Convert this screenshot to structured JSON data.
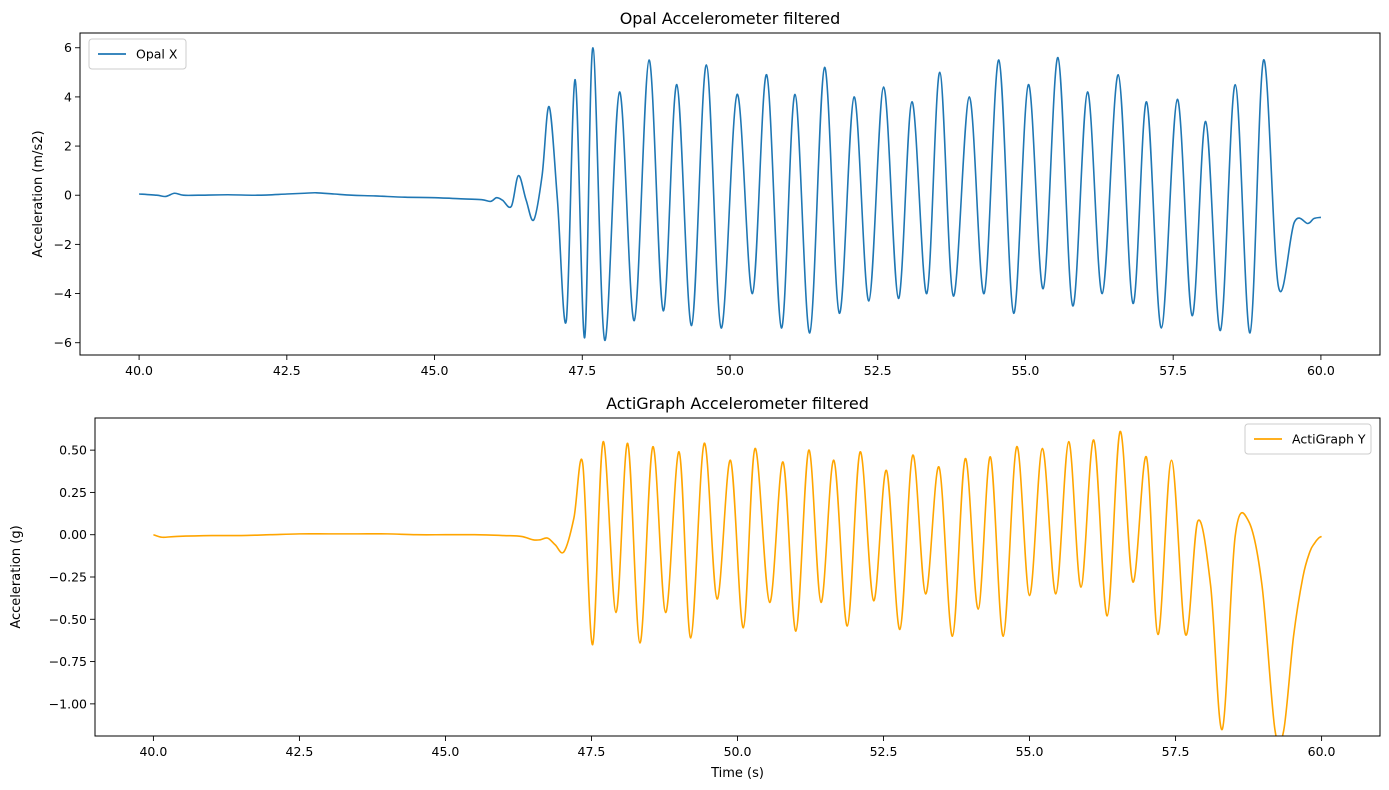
{
  "chart_data": [
    {
      "type": "line",
      "title": "Opal Accelerometer filtered",
      "xlabel": "",
      "ylabel": "Acceleration (m/s2)",
      "xlim": [
        39.0,
        61.0
      ],
      "ylim": [
        -6.5,
        6.6
      ],
      "xticks": [
        40.0,
        42.5,
        45.0,
        47.5,
        50.0,
        52.5,
        55.0,
        57.5,
        60.0
      ],
      "xtick_labels": [
        "40.0",
        "42.5",
        "45.0",
        "47.5",
        "50.0",
        "52.5",
        "55.0",
        "57.5",
        "60.0"
      ],
      "yticks": [
        -6,
        -4,
        -2,
        0,
        2,
        4,
        6
      ],
      "ytick_labels": [
        "−6",
        "−4",
        "−2",
        "0",
        "2",
        "4",
        "6"
      ],
      "legend_position": "upper-left",
      "grid": false,
      "series": [
        {
          "name": "Opal X",
          "color": "#1f77b4",
          "x": [
            40.0,
            40.3,
            40.45,
            40.6,
            40.75,
            41.0,
            41.5,
            42.0,
            42.5,
            42.8,
            43.0,
            43.3,
            43.6,
            44.0,
            44.5,
            45.0,
            45.5,
            45.8,
            45.95,
            46.05,
            46.15,
            46.3,
            46.42,
            46.55,
            46.68,
            46.82,
            46.94,
            47.08,
            47.23,
            47.38,
            47.54,
            47.68,
            47.88,
            48.13,
            48.38,
            48.63,
            48.87,
            49.1,
            49.35,
            49.6,
            49.85,
            50.12,
            50.38,
            50.62,
            50.87,
            51.1,
            51.35,
            51.6,
            51.85,
            52.1,
            52.35,
            52.6,
            52.85,
            53.08,
            53.33,
            53.55,
            53.78,
            54.05,
            54.3,
            54.55,
            54.8,
            55.05,
            55.3,
            55.55,
            55.8,
            56.05,
            56.3,
            56.57,
            56.82,
            57.05,
            57.3,
            57.57,
            57.82,
            58.05,
            58.3,
            58.55,
            58.8,
            59.03,
            59.28,
            59.55,
            59.78,
            59.88,
            60.0
          ],
          "y": [
            0.05,
            0.0,
            -0.05,
            0.08,
            0.0,
            0.0,
            0.02,
            0.0,
            0.05,
            0.08,
            0.1,
            0.05,
            0.0,
            -0.03,
            -0.08,
            -0.1,
            -0.15,
            -0.18,
            -0.25,
            -0.1,
            -0.2,
            -0.45,
            0.8,
            -0.2,
            -1.0,
            0.8,
            3.6,
            -0.2,
            -5.1,
            4.7,
            -5.8,
            6.0,
            -5.9,
            4.2,
            -5.1,
            5.5,
            -4.7,
            4.5,
            -5.3,
            5.3,
            -5.4,
            4.1,
            -4.0,
            4.9,
            -5.4,
            4.1,
            -5.6,
            5.2,
            -4.8,
            4.0,
            -4.3,
            4.4,
            -4.2,
            3.8,
            -4.0,
            5.0,
            -4.1,
            4.0,
            -4.0,
            5.5,
            -4.8,
            4.5,
            -3.8,
            5.6,
            -4.5,
            4.2,
            -4.0,
            4.9,
            -4.4,
            3.8,
            -5.4,
            3.9,
            -4.9,
            3.0,
            -5.5,
            4.5,
            -5.6,
            5.5,
            -3.7,
            -1.1,
            -1.15,
            -0.95,
            -0.9
          ]
        }
      ]
    },
    {
      "type": "line",
      "title": "ActiGraph Accelerometer filtered",
      "xlabel": "Time (s)",
      "ylabel": "Acceleration (g)",
      "xlim": [
        39.0,
        61.0
      ],
      "ylim": [
        -1.19,
        0.69
      ],
      "xticks": [
        40.0,
        42.5,
        45.0,
        47.5,
        50.0,
        52.5,
        55.0,
        57.5,
        60.0
      ],
      "xtick_labels": [
        "40.0",
        "42.5",
        "45.0",
        "47.5",
        "50.0",
        "52.5",
        "55.0",
        "57.5",
        "60.0"
      ],
      "yticks": [
        -1.0,
        -0.75,
        -0.5,
        -0.25,
        0.0,
        0.25,
        0.5
      ],
      "ytick_labels": [
        "−1.00",
        "−0.75",
        "−0.50",
        "−0.25",
        "0.00",
        "0.25",
        "0.50"
      ],
      "legend_position": "upper-right",
      "grid": false,
      "series": [
        {
          "name": "ActiGraph Y",
          "color": "#ffa500",
          "x": [
            40.0,
            40.15,
            40.4,
            41.0,
            41.5,
            42.0,
            42.5,
            43.0,
            43.5,
            44.0,
            44.5,
            45.0,
            45.5,
            46.0,
            46.3,
            46.5,
            46.62,
            46.75,
            46.88,
            47.03,
            47.2,
            47.35,
            47.52,
            47.7,
            47.92,
            48.12,
            48.33,
            48.55,
            48.77,
            49.0,
            49.2,
            49.43,
            49.65,
            49.88,
            50.1,
            50.3,
            50.55,
            50.78,
            51.0,
            51.22,
            51.43,
            51.65,
            51.88,
            52.1,
            52.33,
            52.55,
            52.78,
            53.0,
            53.22,
            53.45,
            53.68,
            53.9,
            54.12,
            54.33,
            54.55,
            54.78,
            55.0,
            55.22,
            55.45,
            55.67,
            55.88,
            56.1,
            56.33,
            56.55,
            56.77,
            57.0,
            57.2,
            57.43,
            57.67,
            57.88,
            58.1,
            58.3,
            58.52,
            58.75,
            58.98,
            59.2,
            59.35,
            59.52,
            59.68,
            59.8,
            59.88,
            59.95,
            60.0
          ],
          "y": [
            0.0,
            -0.015,
            -0.01,
            -0.005,
            -0.005,
            0.0,
            0.005,
            0.005,
            0.005,
            0.005,
            0.0,
            0.0,
            0.0,
            -0.005,
            -0.01,
            -0.03,
            -0.03,
            -0.02,
            -0.06,
            -0.1,
            0.1,
            0.42,
            -0.65,
            0.55,
            -0.46,
            0.54,
            -0.64,
            0.52,
            -0.46,
            0.49,
            -0.61,
            0.54,
            -0.38,
            0.44,
            -0.55,
            0.51,
            -0.4,
            0.43,
            -0.57,
            0.5,
            -0.4,
            0.44,
            -0.54,
            0.49,
            -0.39,
            0.38,
            -0.56,
            0.47,
            -0.35,
            0.4,
            -0.6,
            0.45,
            -0.44,
            0.46,
            -0.6,
            0.52,
            -0.36,
            0.51,
            -0.35,
            0.55,
            -0.31,
            0.56,
            -0.48,
            0.61,
            -0.28,
            0.46,
            -0.59,
            0.44,
            -0.59,
            0.08,
            -0.3,
            -1.15,
            -0.01,
            0.08,
            -0.3,
            -1.15,
            -1.16,
            -0.6,
            -0.25,
            -0.1,
            -0.05,
            -0.02,
            -0.01
          ]
        }
      ]
    }
  ]
}
